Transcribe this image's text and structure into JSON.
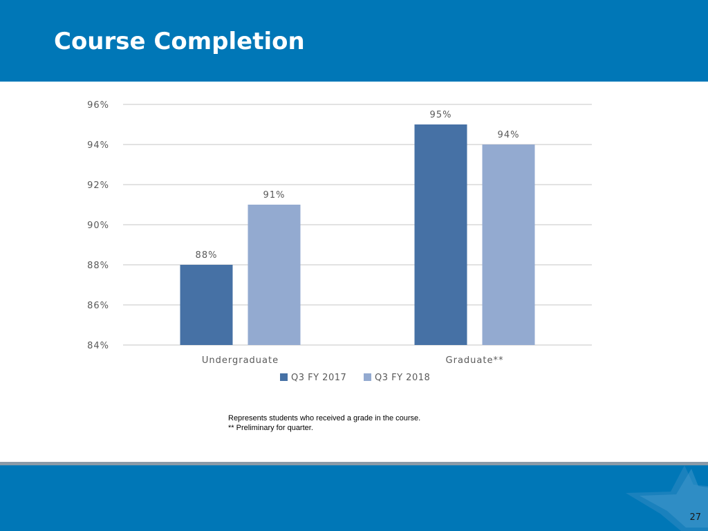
{
  "header": {
    "title": "Course Completion"
  },
  "chart_data": {
    "type": "bar",
    "categories": [
      "Undergraduate",
      "Graduate**"
    ],
    "series": [
      {
        "name": "Q3 FY 2017",
        "values": [
          88,
          95
        ],
        "color": "#4671a5"
      },
      {
        "name": "Q3 FY 2018",
        "values": [
          91,
          94
        ],
        "color": "#93aad0"
      }
    ],
    "data_labels": [
      [
        "88%",
        "95%"
      ],
      [
        "91%",
        "94%"
      ]
    ],
    "ylim": [
      84,
      96
    ],
    "yticks": [
      84,
      86,
      88,
      90,
      92,
      94,
      96
    ],
    "ytick_labels": [
      "84%",
      "86%",
      "88%",
      "90%",
      "92%",
      "94%",
      "96%"
    ],
    "grid": true,
    "legend": "bottom",
    "title": "",
    "xlabel": "",
    "ylabel": ""
  },
  "notes": {
    "line1": "Represents students who received a grade in the course.",
    "line2": "** Preliminary for quarter."
  },
  "footer": {
    "page_number": "27"
  },
  "colors": {
    "brand_blue": "#0077b7",
    "gridline": "#d9d9d9",
    "axis_text": "#595959"
  },
  "icons": {
    "footer_mark": "star-icon"
  }
}
